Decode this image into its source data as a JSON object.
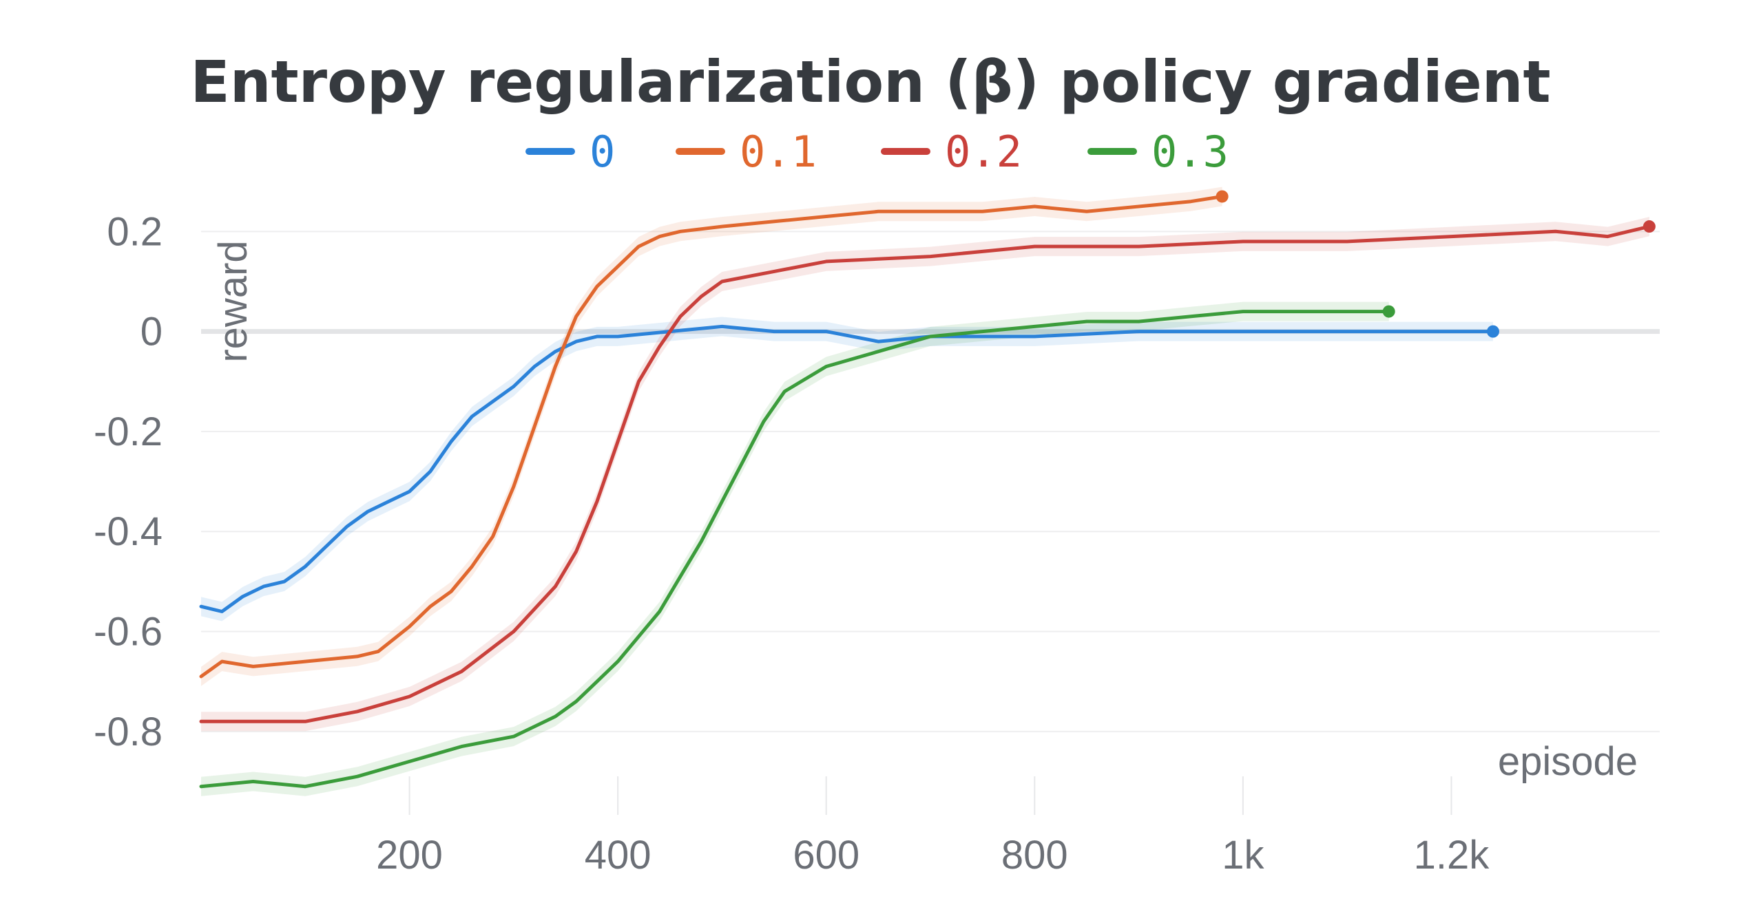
{
  "chart_data": {
    "type": "line",
    "title": "Entropy regularization (β) policy gradient",
    "xlabel": "episode",
    "ylabel": "reward",
    "xlim": [
      0,
      1400
    ],
    "ylim": [
      -0.92,
      0.25
    ],
    "x_ticks": [
      200,
      400,
      600,
      800,
      1000,
      1200
    ],
    "x_tick_labels": [
      "200",
      "400",
      "600",
      "800",
      "1k",
      "1.2k"
    ],
    "y_ticks": [
      0.2,
      0,
      -0.2,
      -0.4,
      -0.6,
      -0.8
    ],
    "y_tick_labels": [
      "0.2",
      "0",
      "-0.2",
      "-0.4",
      "-0.6",
      "-0.8"
    ],
    "grid": true,
    "legend_position": "top-center",
    "series": [
      {
        "name": "0",
        "color": "#2b82d9",
        "x": [
          0,
          20,
          40,
          60,
          80,
          100,
          120,
          140,
          160,
          180,
          200,
          220,
          240,
          260,
          280,
          300,
          320,
          340,
          360,
          380,
          400,
          450,
          500,
          550,
          600,
          650,
          700,
          800,
          900,
          1000,
          1100,
          1150,
          1200,
          1240
        ],
        "y": [
          -0.55,
          -0.56,
          -0.53,
          -0.51,
          -0.5,
          -0.47,
          -0.43,
          -0.39,
          -0.36,
          -0.34,
          -0.32,
          -0.28,
          -0.22,
          -0.17,
          -0.14,
          -0.11,
          -0.07,
          -0.04,
          -0.02,
          -0.01,
          -0.01,
          0.0,
          0.01,
          0.0,
          0.0,
          -0.02,
          -0.01,
          -0.01,
          0.0,
          0.0,
          0.0,
          0.0,
          0.0,
          0.0
        ]
      },
      {
        "name": "0.1",
        "color": "#e0672e",
        "x": [
          0,
          20,
          50,
          100,
          150,
          170,
          200,
          220,
          240,
          260,
          280,
          300,
          320,
          340,
          360,
          380,
          400,
          420,
          440,
          460,
          500,
          550,
          600,
          650,
          700,
          750,
          800,
          850,
          900,
          950,
          980
        ],
        "y": [
          -0.69,
          -0.66,
          -0.67,
          -0.66,
          -0.65,
          -0.64,
          -0.59,
          -0.55,
          -0.52,
          -0.47,
          -0.41,
          -0.31,
          -0.19,
          -0.07,
          0.03,
          0.09,
          0.13,
          0.17,
          0.19,
          0.2,
          0.21,
          0.22,
          0.23,
          0.24,
          0.24,
          0.24,
          0.25,
          0.24,
          0.25,
          0.26,
          0.27
        ]
      },
      {
        "name": "0.2",
        "color": "#c9403b",
        "x": [
          0,
          50,
          100,
          150,
          200,
          250,
          300,
          340,
          360,
          380,
          400,
          420,
          440,
          460,
          480,
          500,
          550,
          600,
          700,
          800,
          900,
          1000,
          1100,
          1200,
          1300,
          1350,
          1390
        ],
        "y": [
          -0.78,
          -0.78,
          -0.78,
          -0.76,
          -0.73,
          -0.68,
          -0.6,
          -0.51,
          -0.44,
          -0.34,
          -0.22,
          -0.1,
          -0.03,
          0.03,
          0.07,
          0.1,
          0.12,
          0.14,
          0.15,
          0.17,
          0.17,
          0.18,
          0.18,
          0.19,
          0.2,
          0.19,
          0.21
        ]
      },
      {
        "name": "0.3",
        "color": "#3b9c3b",
        "x": [
          0,
          50,
          100,
          150,
          200,
          250,
          300,
          340,
          360,
          380,
          400,
          420,
          440,
          460,
          480,
          500,
          520,
          540,
          560,
          600,
          650,
          700,
          750,
          800,
          850,
          900,
          950,
          1000,
          1050,
          1100,
          1140
        ],
        "y": [
          -0.91,
          -0.9,
          -0.91,
          -0.89,
          -0.86,
          -0.83,
          -0.81,
          -0.77,
          -0.74,
          -0.7,
          -0.66,
          -0.61,
          -0.56,
          -0.49,
          -0.42,
          -0.34,
          -0.26,
          -0.18,
          -0.12,
          -0.07,
          -0.04,
          -0.01,
          0.0,
          0.01,
          0.02,
          0.02,
          0.03,
          0.04,
          0.04,
          0.04,
          0.04
        ]
      }
    ]
  }
}
